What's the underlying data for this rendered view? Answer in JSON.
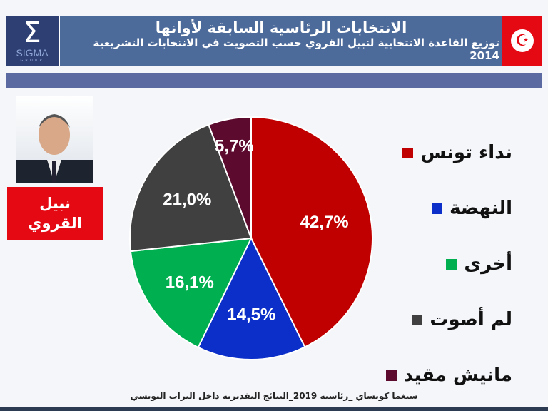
{
  "header": {
    "title": "الانتخابات الرئاسية السابقة لأوانها",
    "subtitle": "توزيع القاعدة الانتخابية لنبيل القروي حسب التصويت في الانتخابات التشريعية 2014",
    "logo_text": "SIGMA",
    "logo_sub": "GROUP"
  },
  "candidate": {
    "line1": "نبيل",
    "line2": "القروي"
  },
  "footer": "سيغما كونساي _رئاسية 2019_النتائج التقديرية داخل التراب التونسي",
  "chart_data": {
    "type": "pie",
    "start": "top",
    "direction": "clockwise",
    "slices": [
      {
        "label": "نداء تونس",
        "value": 42.7,
        "text": "42,7%",
        "color": "#c00000"
      },
      {
        "label": "النهضة",
        "value": 14.5,
        "text": "14,5%",
        "color": "#0b2fc8"
      },
      {
        "label": "أخرى",
        "value": 16.1,
        "text": "16,1%",
        "color": "#00b050"
      },
      {
        "label": "لم أصوت",
        "value": 21.0,
        "text": "21,0%",
        "color": "#404040"
      },
      {
        "label": "مانيش مقيد",
        "value": 5.7,
        "text": "5,7%",
        "color": "#5c0a2e"
      }
    ],
    "legend": "right"
  }
}
